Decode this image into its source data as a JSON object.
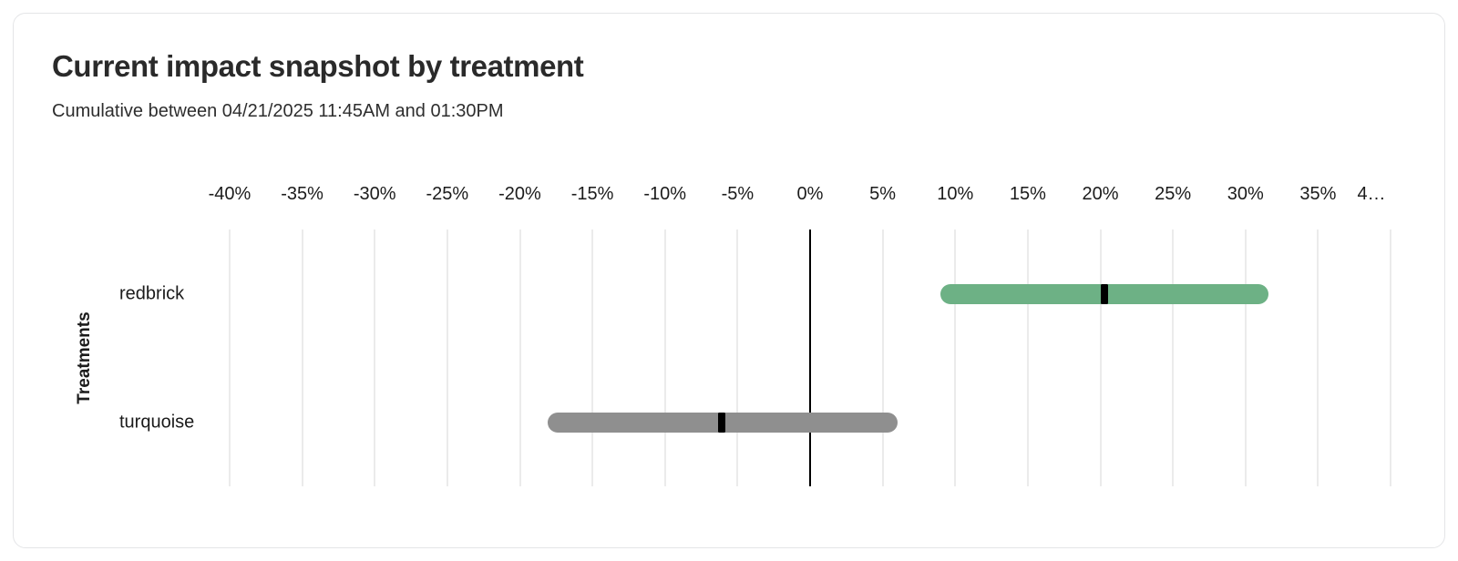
{
  "chart_data": {
    "type": "bar",
    "subtype": "horizontal_range_interval",
    "title": "Current impact snapshot by treatment",
    "subtitle": "Cumulative between 04/21/2025 11:45AM and 01:30PM",
    "ylabel": "Treatments",
    "xlim": [
      -40,
      40
    ],
    "x_unit": "%",
    "grid": "vertical",
    "zero_line": true,
    "legend": "none",
    "x_ticks": [
      {
        "value": -40,
        "label": "-40%"
      },
      {
        "value": -35,
        "label": "-35%"
      },
      {
        "value": -30,
        "label": "-30%"
      },
      {
        "value": -25,
        "label": "-25%"
      },
      {
        "value": -20,
        "label": "-20%"
      },
      {
        "value": -15,
        "label": "-15%"
      },
      {
        "value": -10,
        "label": "-10%"
      },
      {
        "value": -5,
        "label": "-5%"
      },
      {
        "value": 0,
        "label": "0%"
      },
      {
        "value": 5,
        "label": "5%"
      },
      {
        "value": 10,
        "label": "10%"
      },
      {
        "value": 15,
        "label": "15%"
      },
      {
        "value": 20,
        "label": "20%"
      },
      {
        "value": 25,
        "label": "25%"
      },
      {
        "value": 30,
        "label": "30%"
      },
      {
        "value": 35,
        "label": "35%"
      },
      {
        "value": 40,
        "label": "4…"
      }
    ],
    "rows": [
      {
        "label": "redbrick",
        "ci_lower": 9.0,
        "estimate": 20.3,
        "ci_upper": 31.6,
        "color": "#6DB185"
      },
      {
        "label": "turquoise",
        "ci_lower": -18.1,
        "estimate": -6.1,
        "ci_upper": 6.0,
        "color": "#8F8F8F"
      }
    ],
    "colors": {
      "marker": "#000000",
      "zero_line": "#000000",
      "gridline": "#ebebeb"
    }
  }
}
